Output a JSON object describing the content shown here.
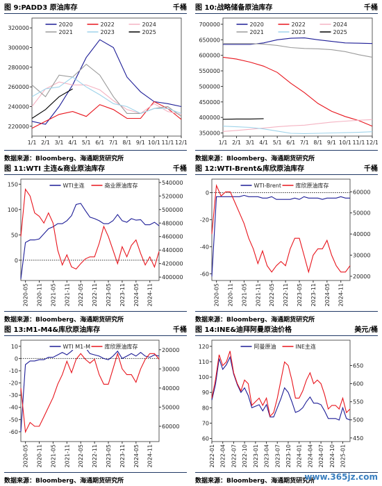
{
  "watermark": "www.365jz.com",
  "chart_data": [
    {
      "type": "line",
      "title": "图 9:PADD3 原油库存",
      "unit": "千桶",
      "source": "数据来源：Bloomberg、海通期货研究所",
      "categories": [
        "1/1",
        "2/1",
        "3/1",
        "4/1",
        "5/1",
        "6/1",
        "7/1",
        "8/1",
        "9/1",
        "10/1",
        "11/1",
        "12/1"
      ],
      "ylim": [
        210000,
        330000
      ],
      "yticks": [
        220000,
        240000,
        260000,
        280000,
        300000,
        320000
      ],
      "series": [
        {
          "name": "2020",
          "color": "#1c1c96",
          "values": [
            225000,
            222000,
            240000,
            262000,
            290000,
            308000,
            300000,
            270000,
            255000,
            245000,
            243000,
            240000
          ]
        },
        {
          "name": "2022",
          "color": "#e8141c",
          "values": [
            218000,
            225000,
            232000,
            235000,
            230000,
            242000,
            237000,
            228000,
            228000,
            245000,
            238000,
            227000
          ]
        },
        {
          "name": "2024",
          "color": "#f4b3c2",
          "values": [
            240000,
            258000,
            265000,
            262000,
            262000,
            257000,
            246000,
            237000,
            233000,
            243000,
            235000,
            232000
          ]
        },
        {
          "name": "2021",
          "color": "#9a9a9a",
          "values": [
            262000,
            250000,
            272000,
            270000,
            283000,
            272000,
            250000,
            233000,
            233000,
            238000,
            240000,
            230000
          ]
        },
        {
          "name": "2023",
          "color": "#9fd3ea",
          "values": [
            250000,
            258000,
            260000,
            270000,
            260000,
            252000,
            243000,
            240000,
            233000,
            238000,
            238000,
            233000
          ]
        },
        {
          "name": "2025",
          "color": "#000000",
          "values": [
            228000,
            237000,
            250000,
            258000,
            null,
            null,
            null,
            null,
            null,
            null,
            null,
            null
          ]
        }
      ]
    },
    {
      "type": "line",
      "title": "图 10:战略储备原油库存",
      "unit": "千桶",
      "source": "数据来源：Bloomberg、海通期货研究所",
      "categories": [
        "1/1",
        "2/1",
        "3/1",
        "4/1",
        "5/1",
        "6/1",
        "7/1",
        "8/1",
        "9/1",
        "10/1",
        "11/1",
        "12/1"
      ],
      "ylim": [
        340000,
        720000
      ],
      "yticks": [
        350000,
        400000,
        450000,
        500000,
        550000,
        600000,
        650000,
        700000
      ],
      "series": [
        {
          "name": "2020",
          "color": "#1c1c96",
          "values": [
            635000,
            635000,
            635000,
            640000,
            650000,
            655000,
            656000,
            650000,
            645000,
            640000,
            639000,
            638000
          ]
        },
        {
          "name": "2022",
          "color": "#e8141c",
          "values": [
            594000,
            588000,
            578000,
            565000,
            545000,
            510000,
            480000,
            445000,
            420000,
            403000,
            390000,
            372000
          ]
        },
        {
          "name": "2024",
          "color": "#f4b3c2",
          "values": [
            355000,
            358000,
            362000,
            366000,
            370000,
            373000,
            375000,
            380000,
            385000,
            388000,
            391000,
            393000
          ]
        },
        {
          "name": "2021",
          "color": "#9a9a9a",
          "values": [
            638000,
            638000,
            638000,
            636000,
            632000,
            625000,
            622000,
            621000,
            618000,
            612000,
            602000,
            594000
          ]
        },
        {
          "name": "2023",
          "color": "#9fd3ea",
          "values": [
            372000,
            370000,
            368000,
            363000,
            356000,
            349000,
            348000,
            349000,
            350000,
            351000,
            352000,
            354000
          ]
        },
        {
          "name": "2025",
          "color": "#000000",
          "values": [
            394000,
            395000,
            395000,
            396000,
            null,
            null,
            null,
            null,
            null,
            null,
            null,
            null
          ]
        }
      ]
    },
    {
      "type": "line",
      "title": "图 11:WTI 主连&商业原油库存",
      "unit": "千桶",
      "source": "数据来源：Bloomberg、海通期货研究所",
      "categories": [
        null,
        "2020-05",
        null,
        null,
        "2020-11",
        null,
        null,
        "2021-05",
        null,
        null,
        "2021-11",
        null,
        null,
        "2022-05",
        null,
        null,
        "2022-11",
        null,
        null,
        "2023-05",
        null,
        null,
        "2023-11",
        null,
        null,
        "2024-05",
        null,
        null,
        "2024-11",
        null,
        null
      ],
      "ylim": [
        -40,
        160
      ],
      "yticks": [
        0,
        50,
        100,
        150
      ],
      "hline": 0,
      "y2lim": [
        395000,
        545000
      ],
      "y2ticks": [
        400000,
        420000,
        440000,
        460000,
        480000,
        500000,
        520000,
        540000
      ],
      "series": [
        {
          "name": "WTI主连",
          "color": "#1c1c96",
          "values": [
            -37,
            35,
            40,
            40,
            42,
            52,
            62,
            66,
            72,
            72,
            78,
            88,
            110,
            112,
            98,
            85,
            82,
            78,
            72,
            72,
            78,
            90,
            78,
            75,
            82,
            79,
            80,
            70,
            70,
            75,
            68
          ]
        },
        {
          "name": "商业原油库存",
          "color": "#e8141c",
          "axis": "y2",
          "values": [
            460000,
            530000,
            520000,
            495000,
            490000,
            480000,
            495000,
            480000,
            440000,
            418000,
            433000,
            415000,
            412000,
            420000,
            427000,
            430000,
            430000,
            450000,
            475000,
            460000,
            440000,
            420000,
            445000,
            430000,
            447000,
            455000,
            435000,
            418000,
            430000,
            415000,
            438000
          ]
        }
      ]
    },
    {
      "type": "line",
      "title": "图 12:WTI-Brent&库欣原油库存",
      "unit": "千桶",
      "source": "数据来源：Bloomberg、海通期货研究所",
      "categories": [
        null,
        "2020-05",
        null,
        null,
        "2020-11",
        null,
        null,
        "2021-05",
        null,
        null,
        "2021-11",
        null,
        null,
        "2022-05",
        null,
        null,
        "2022-11",
        null,
        null,
        "2023-05",
        null,
        null,
        "2023-11",
        null,
        null,
        "2024-05",
        null,
        null,
        "2024-11",
        null,
        null
      ],
      "ylim": [
        -65,
        10
      ],
      "yticks": [
        -60,
        -40,
        -20,
        0
      ],
      "hline": 0,
      "y2lim": [
        18000,
        66000
      ],
      "y2ticks": [
        20000,
        30000,
        40000,
        50000,
        60000
      ],
      "series": [
        {
          "name": "WTI-Brent",
          "color": "#1c1c96",
          "values": [
            -62,
            -3,
            -3,
            -3,
            -3,
            -3,
            -3,
            -2,
            -3,
            -3,
            -3,
            -4,
            -4,
            -3,
            -5,
            -5,
            -5,
            -5,
            -4,
            -5,
            -3,
            -4,
            -4,
            -4,
            -5,
            -4,
            -4,
            -4,
            -3,
            -4,
            -4
          ]
        },
        {
          "name": "库欣原油库存",
          "color": "#e8141c",
          "axis": "y2",
          "values": [
            40000,
            63000,
            58000,
            60000,
            60000,
            55000,
            50000,
            45000,
            38000,
            33000,
            26000,
            32000,
            25000,
            22000,
            25000,
            27000,
            25000,
            33000,
            38000,
            38000,
            30000,
            22000,
            30000,
            33000,
            33000,
            37000,
            30000,
            25000,
            22000,
            22000,
            25000
          ]
        }
      ]
    },
    {
      "type": "line",
      "title": "图 13:M1-M4&库欣原油库存",
      "unit": "千桶",
      "source": "数据来源：Bloomberg、海通期货研究所",
      "categories": [
        null,
        "2020-05",
        null,
        null,
        "2020-11",
        null,
        null,
        "2021-05",
        null,
        null,
        "2021-11",
        null,
        null,
        "2022-05",
        null,
        null,
        "2022-11",
        null,
        null,
        "2023-05",
        null,
        null,
        "2023-11",
        null,
        null,
        "2024-05",
        null,
        null,
        "2024-11",
        null,
        null
      ],
      "ylim": [
        -68,
        15
      ],
      "yticks": [
        -60,
        -50,
        -40,
        -30,
        -20,
        -10,
        0,
        10
      ],
      "hline": 0,
      "y2lim": [
        15000,
        68000
      ],
      "y2ticks": [
        20000,
        30000,
        40000,
        50000,
        60000
      ],
      "y2_inverted": true,
      "series": [
        {
          "name": "WTI M1-M4",
          "color": "#1c1c96",
          "values": [
            -60,
            -5,
            -2,
            -2,
            -1,
            -1,
            1,
            1,
            3,
            5,
            3,
            6,
            10,
            8,
            9,
            4,
            3,
            2,
            0,
            -1,
            2,
            6,
            0,
            2,
            4,
            2,
            5,
            2,
            1,
            3,
            2
          ]
        },
        {
          "name": "库欣原油库存",
          "color": "#e8141c",
          "axis": "y2",
          "values": [
            40000,
            63000,
            58000,
            60000,
            60000,
            55000,
            50000,
            45000,
            38000,
            33000,
            26000,
            32000,
            25000,
            22000,
            25000,
            27000,
            25000,
            33000,
            38000,
            38000,
            30000,
            22000,
            30000,
            33000,
            33000,
            37000,
            30000,
            25000,
            22000,
            22000,
            25000
          ]
        }
      ]
    },
    {
      "type": "line",
      "title": "图 14:INE&迪拜阿曼原油价格",
      "unit": "美元/桶",
      "source": "数据来源：Bloomberg、海通期货研究所",
      "categories": [
        "2022-01",
        null,
        null,
        "2022-04",
        null,
        null,
        "2022-07",
        null,
        null,
        "2022-10",
        null,
        null,
        "2023-01",
        null,
        null,
        "2023-04",
        null,
        null,
        "2023-07",
        null,
        null,
        "2023-10",
        null,
        null,
        "2024-01",
        null,
        null,
        "2024-04",
        null,
        null,
        "2024-07",
        null,
        null,
        "2024-10",
        null,
        null,
        "2025-01",
        null,
        null
      ],
      "ylim": [
        58,
        124
      ],
      "yticks": [
        60,
        70,
        80,
        90,
        100,
        110,
        120
      ],
      "y2lim": [
        440,
        720
      ],
      "y2ticks": [
        450,
        500,
        550,
        600,
        650
      ],
      "series": [
        {
          "name": "阿曼原油",
          "color": "#1c1c96",
          "values": [
            85,
            95,
            112,
            105,
            108,
            113,
            102,
            95,
            90,
            93,
            88,
            80,
            81,
            82,
            78,
            82,
            74,
            74,
            80,
            86,
            93,
            90,
            84,
            77,
            78,
            80,
            84,
            87,
            83,
            83,
            82,
            78,
            73,
            73,
            73,
            72,
            80,
            73,
            72
          ]
        },
        {
          "name": "INE主连",
          "color": "#e8141c",
          "axis": "y2",
          "values": [
            560,
            610,
            680,
            650,
            660,
            690,
            630,
            600,
            580,
            610,
            600,
            540,
            550,
            560,
            540,
            560,
            510,
            520,
            560,
            610,
            660,
            650,
            610,
            560,
            560,
            580,
            610,
            630,
            600,
            610,
            600,
            570,
            530,
            540,
            540,
            530,
            560,
            520,
            530
          ]
        }
      ]
    }
  ]
}
